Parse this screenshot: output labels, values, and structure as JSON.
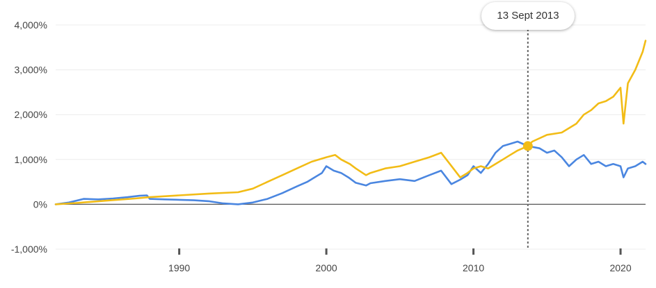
{
  "tooltip": {
    "date": "13 Sept 2013"
  },
  "chart_data": {
    "type": "line",
    "title": "",
    "xlabel": "",
    "ylabel": "",
    "xlim": [
      1981.6,
      2021.7
    ],
    "ylim": [
      -1000,
      4000
    ],
    "y_ticks": [
      -1000,
      0,
      1000,
      2000,
      3000,
      4000
    ],
    "y_tick_labels": [
      "-1,000%",
      "0%",
      "1,000%",
      "2,000%",
      "3,000%",
      "4,000%"
    ],
    "x_ticks": [
      1990,
      2000,
      2010,
      2020
    ],
    "x_tick_labels": [
      "1990",
      "2000",
      "2010",
      "2020"
    ],
    "grid": "horizontal",
    "crosshair_x": 2013.7,
    "series": [
      {
        "color": "#4a86e0",
        "x": [
          1981.6,
          1982.5,
          1983.5,
          1984.5,
          1985.5,
          1986.5,
          1987.3,
          1987.8,
          1988,
          1989,
          1990,
          1991,
          1992,
          1993,
          1994,
          1995,
          1996,
          1997,
          1998,
          1998.7,
          1999.2,
          1999.7,
          2000,
          2000.5,
          2001,
          2001.5,
          2002,
          2002.7,
          2003,
          2004,
          2005,
          2006,
          2007,
          2007.8,
          2008.5,
          2009.1,
          2009.6,
          2010,
          2010.5,
          2011,
          2011.5,
          2012,
          2012.5,
          2013,
          2013.7,
          2014.5,
          2015,
          2015.5,
          2016,
          2016.5,
          2017,
          2017.5,
          2018,
          2018.5,
          2019,
          2019.5,
          2020,
          2020.2,
          2020.5,
          2021,
          2021.5,
          2021.7
        ],
        "values": [
          0,
          40,
          120,
          110,
          130,
          160,
          190,
          200,
          120,
          110,
          100,
          90,
          70,
          20,
          0,
          40,
          120,
          250,
          400,
          500,
          600,
          700,
          850,
          750,
          700,
          600,
          480,
          420,
          470,
          520,
          560,
          520,
          650,
          750,
          450,
          550,
          650,
          850,
          700,
          900,
          1150,
          1300,
          1350,
          1400,
          1300,
          1250,
          1150,
          1200,
          1050,
          850,
          1000,
          1100,
          900,
          950,
          850,
          900,
          850,
          600,
          800,
          850,
          950,
          900
        ]
      },
      {
        "color": "#f2bc16",
        "x": [
          1981.6,
          1983,
          1985,
          1987,
          1988,
          1990,
          1992,
          1994,
          1995,
          1996,
          1997,
          1998,
          1999,
          2000,
          2000.6,
          2001,
          2001.6,
          2002,
          2002.7,
          2003,
          2004,
          2005,
          2006,
          2007,
          2007.8,
          2008.4,
          2009.1,
          2009.6,
          2010,
          2010.5,
          2011,
          2011.5,
          2012,
          2012.5,
          2013,
          2013.7,
          2014,
          2015,
          2016,
          2017,
          2017.5,
          2018,
          2018.5,
          2019,
          2019.5,
          2020,
          2020.2,
          2020.5,
          2021,
          2021.5,
          2021.7
        ],
        "values": [
          0,
          30,
          80,
          130,
          160,
          200,
          240,
          270,
          350,
          500,
          650,
          800,
          950,
          1050,
          1100,
          1000,
          900,
          800,
          650,
          700,
          800,
          850,
          950,
          1050,
          1150,
          900,
          600,
          700,
          800,
          850,
          800,
          900,
          1000,
          1100,
          1200,
          1300,
          1400,
          1550,
          1600,
          1800,
          2000,
          2100,
          2250,
          2300,
          2400,
          2600,
          1800,
          2700,
          3000,
          3400,
          3650
        ]
      }
    ]
  }
}
